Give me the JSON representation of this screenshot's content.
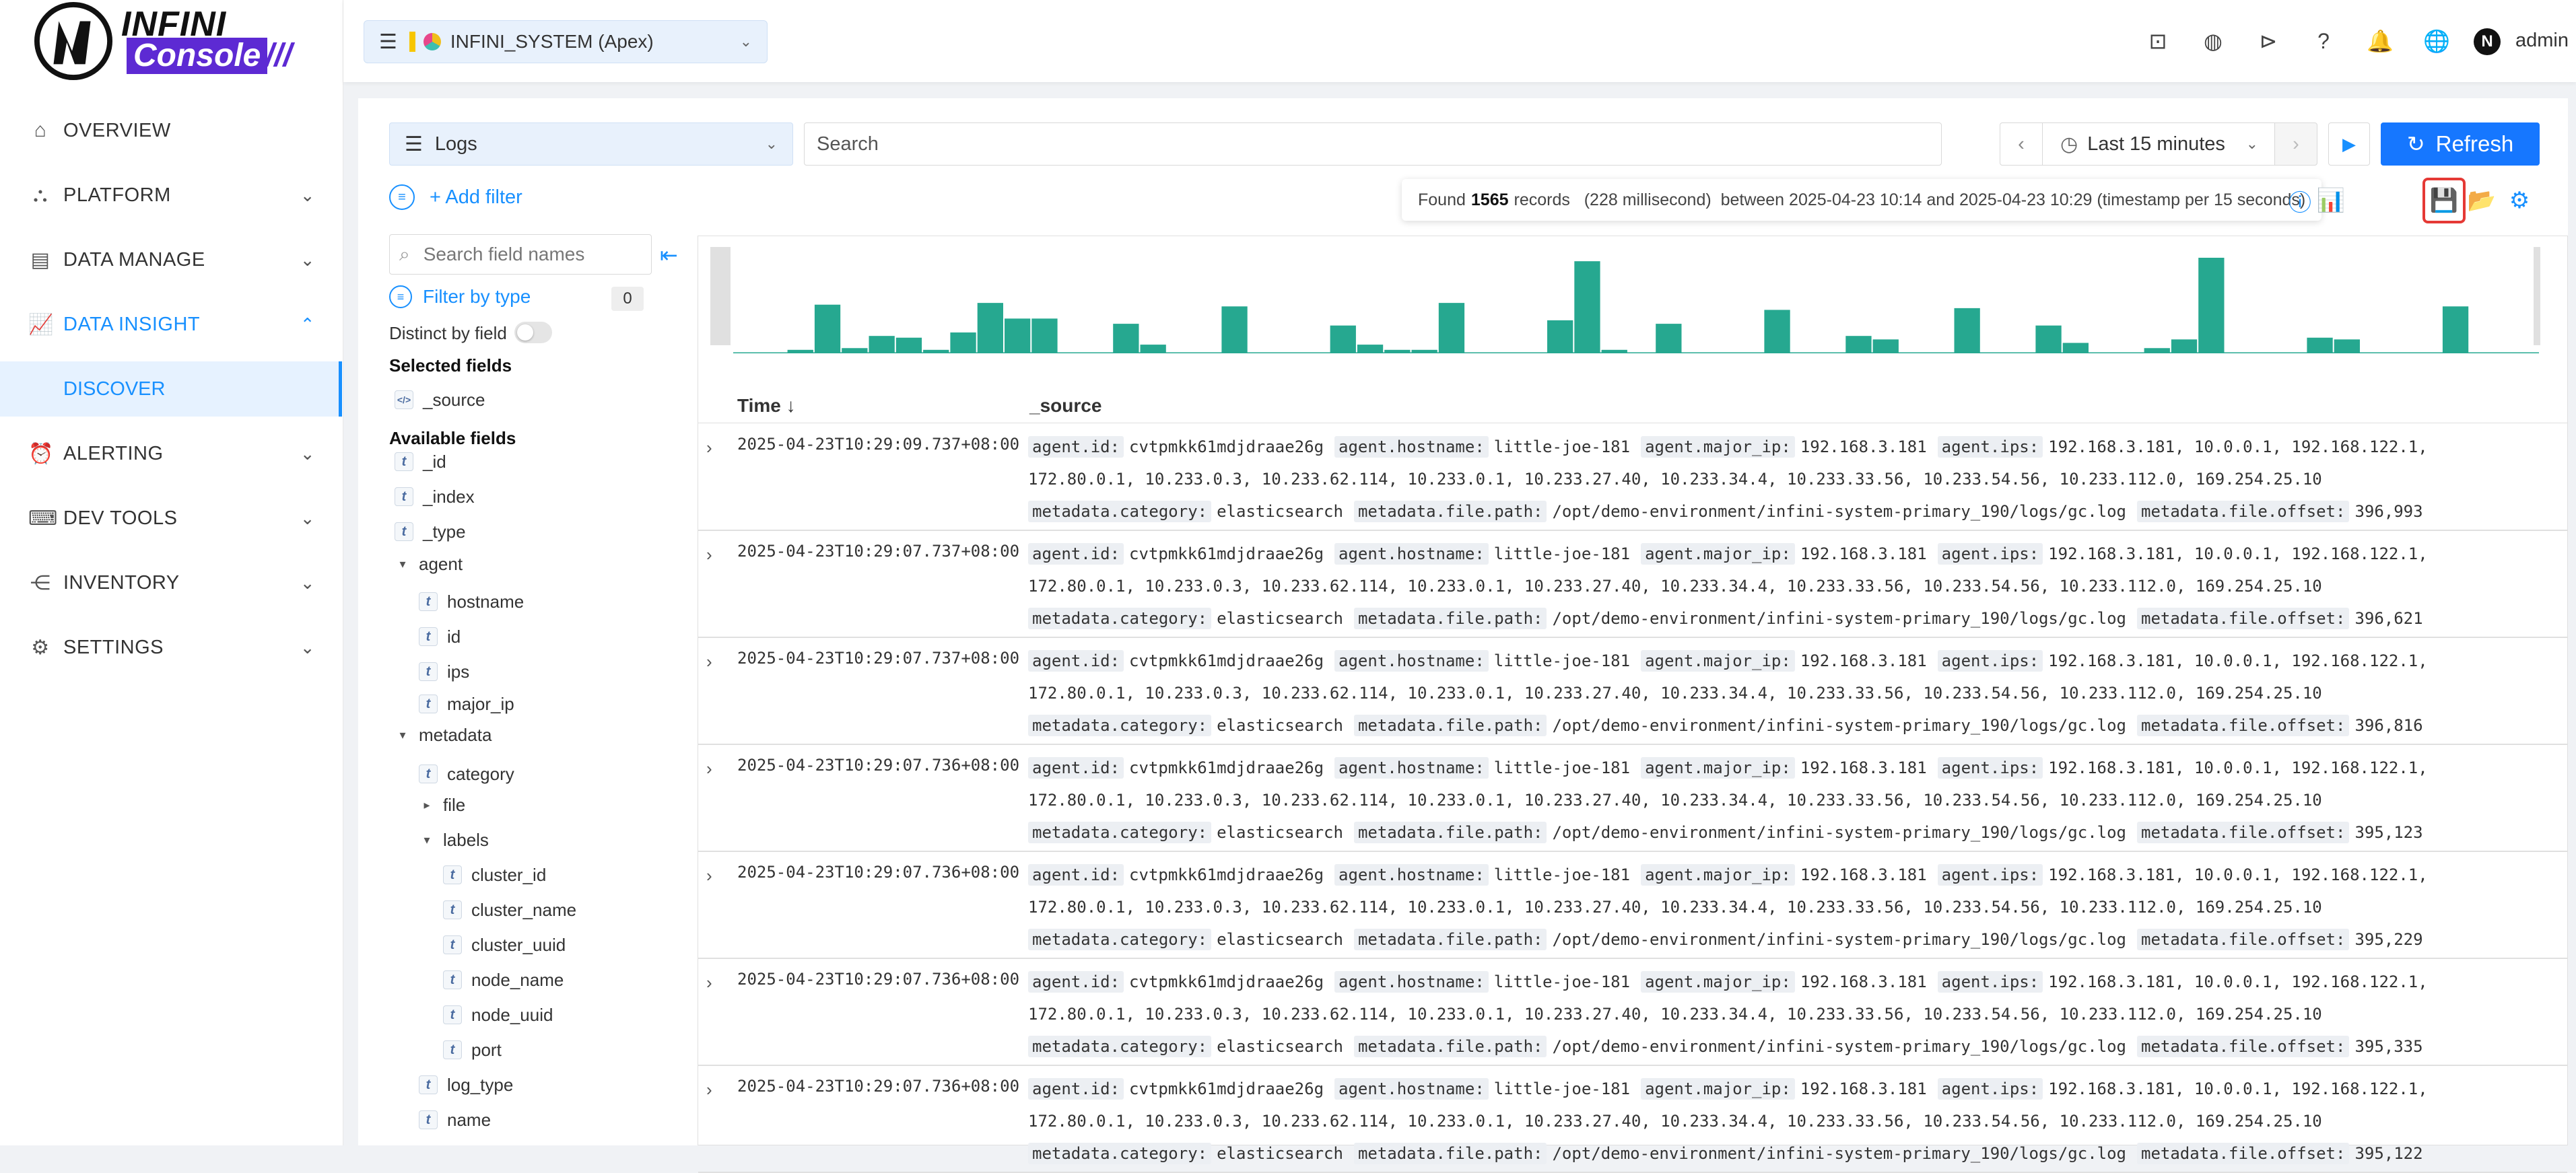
{
  "app": {
    "logo_top": "INFINI",
    "logo_bottom": "Console",
    "logo_slashes": "///"
  },
  "nav": [
    {
      "label": "OVERVIEW",
      "icon": "home-icon",
      "chevron": false
    },
    {
      "label": "PLATFORM",
      "icon": "platform-icon",
      "chevron": true
    },
    {
      "label": "DATA MANAGE",
      "icon": "database-icon",
      "chevron": true
    },
    {
      "label": "DATA INSIGHT",
      "icon": "chart-icon",
      "chevron": true,
      "expanded": true,
      "active": true
    },
    {
      "label": "ALERTING",
      "icon": "alarm-icon",
      "chevron": true
    },
    {
      "label": "DEV TOOLS",
      "icon": "terminal-icon",
      "chevron": true
    },
    {
      "label": "INVENTORY",
      "icon": "share-icon",
      "chevron": true
    },
    {
      "label": "SETTINGS",
      "icon": "gear-icon",
      "chevron": true
    }
  ],
  "nav_sub_active": "DISCOVER",
  "header": {
    "cluster": "INFINI_SYSTEM (Apex)",
    "user": "admin",
    "icons": [
      "robot-icon",
      "palette-icon",
      "console-icon",
      "help-icon",
      "bell-icon",
      "globe-icon"
    ]
  },
  "toolbar": {
    "index_view": "Logs",
    "search_placeholder": "Search",
    "time_range": "Last 15 minutes",
    "refresh_label": "Refresh",
    "add_filter": "+ Add filter"
  },
  "found": {
    "prefix": "Found",
    "count": "1565",
    "rest": "records   (228 millisecond)  between 2025-04-23 10:14 and 2025-04-23 10:29 (timestamp per 15 seconds)"
  },
  "fields_panel": {
    "search_placeholder": "Search field names",
    "filter_by_type": "Filter by type",
    "filter_count": "0",
    "distinct_label": "Distinct by field",
    "selected_title": "Selected fields",
    "selected": [
      "_source"
    ],
    "available_title": "Available fields",
    "available": [
      {
        "name": "_id",
        "kind": "t",
        "depth": 0
      },
      {
        "name": "_index",
        "kind": "t",
        "depth": 0
      },
      {
        "name": "_type",
        "kind": "t",
        "depth": 0
      },
      {
        "name": "agent",
        "kind": "open",
        "depth": 0
      },
      {
        "name": "hostname",
        "kind": "t",
        "depth": 1
      },
      {
        "name": "id",
        "kind": "t",
        "depth": 1
      },
      {
        "name": "ips",
        "kind": "t",
        "depth": 1
      },
      {
        "name": "major_ip",
        "kind": "t",
        "depth": 1
      },
      {
        "name": "metadata",
        "kind": "open",
        "depth": 0
      },
      {
        "name": "category",
        "kind": "t",
        "depth": 1
      },
      {
        "name": "file",
        "kind": "closed",
        "depth": 1
      },
      {
        "name": "labels",
        "kind": "open",
        "depth": 1
      },
      {
        "name": "cluster_id",
        "kind": "t",
        "depth": 2
      },
      {
        "name": "cluster_name",
        "kind": "t",
        "depth": 2
      },
      {
        "name": "cluster_uuid",
        "kind": "t",
        "depth": 2
      },
      {
        "name": "node_name",
        "kind": "t",
        "depth": 2
      },
      {
        "name": "node_uuid",
        "kind": "t",
        "depth": 2
      },
      {
        "name": "port",
        "kind": "t",
        "depth": 2
      },
      {
        "name": "log_type",
        "kind": "t",
        "depth": 1
      },
      {
        "name": "name",
        "kind": "t",
        "depth": 1
      }
    ]
  },
  "table": {
    "col_time": "Time ↓",
    "col_source": "_source",
    "rows": [
      {
        "time": "2025-04-23T10:29:09.737+08:00",
        "offset": "396,993"
      },
      {
        "time": "2025-04-23T10:29:07.737+08:00",
        "offset": "396,621"
      },
      {
        "time": "2025-04-23T10:29:07.737+08:00",
        "offset": "396,816"
      },
      {
        "time": "2025-04-23T10:29:07.736+08:00",
        "offset": "395,123"
      },
      {
        "time": "2025-04-23T10:29:07.736+08:00",
        "offset": "395,229"
      },
      {
        "time": "2025-04-23T10:29:07.736+08:00",
        "offset": "395,335"
      },
      {
        "time": "2025-04-23T10:29:07.736+08:00",
        "offset": "395,122"
      }
    ],
    "source": {
      "agent_id_k": "agent.id:",
      "agent_id_v": "cvtpmkk61mdjdraae26g",
      "hostname_k": "agent.hostname:",
      "hostname_v": "little-joe-181",
      "major_ip_k": "agent.major_ip:",
      "major_ip_v": "192.168.3.181",
      "ips_k": "agent.ips:",
      "ips_v1": "192.168.3.181, 10.0.0.1, 192.168.122.1,",
      "ips_v2": "172.80.0.1, 10.233.0.3, 10.233.62.114, 10.233.0.1, 10.233.27.40, 10.233.34.4, 10.233.33.56, 10.233.54.56, 10.233.112.0, 169.254.25.10",
      "category_k": "metadata.category:",
      "category_v": "elasticsearch",
      "path_k": "metadata.file.path:",
      "path_v": "/opt/demo-environment/infini-system-primary_190/logs/gc.log",
      "offset_k": "metadata.file.offset:"
    }
  },
  "chart_data": {
    "type": "bar",
    "title": "",
    "color": "#26a890",
    "values": [
      0,
      0,
      2,
      28,
      3,
      10,
      9,
      2,
      12,
      29,
      20,
      20,
      0,
      0,
      17,
      5,
      0,
      0,
      27,
      0,
      0,
      0,
      16,
      5,
      2,
      2,
      29,
      0,
      0,
      0,
      19,
      53,
      2,
      0,
      17,
      0,
      0,
      0,
      25,
      0,
      0,
      10,
      8,
      0,
      0,
      26,
      0,
      0,
      16,
      6,
      0,
      0,
      3,
      8,
      55,
      0,
      0,
      0,
      9,
      8,
      0,
      0,
      0,
      27,
      0,
      0
    ]
  }
}
